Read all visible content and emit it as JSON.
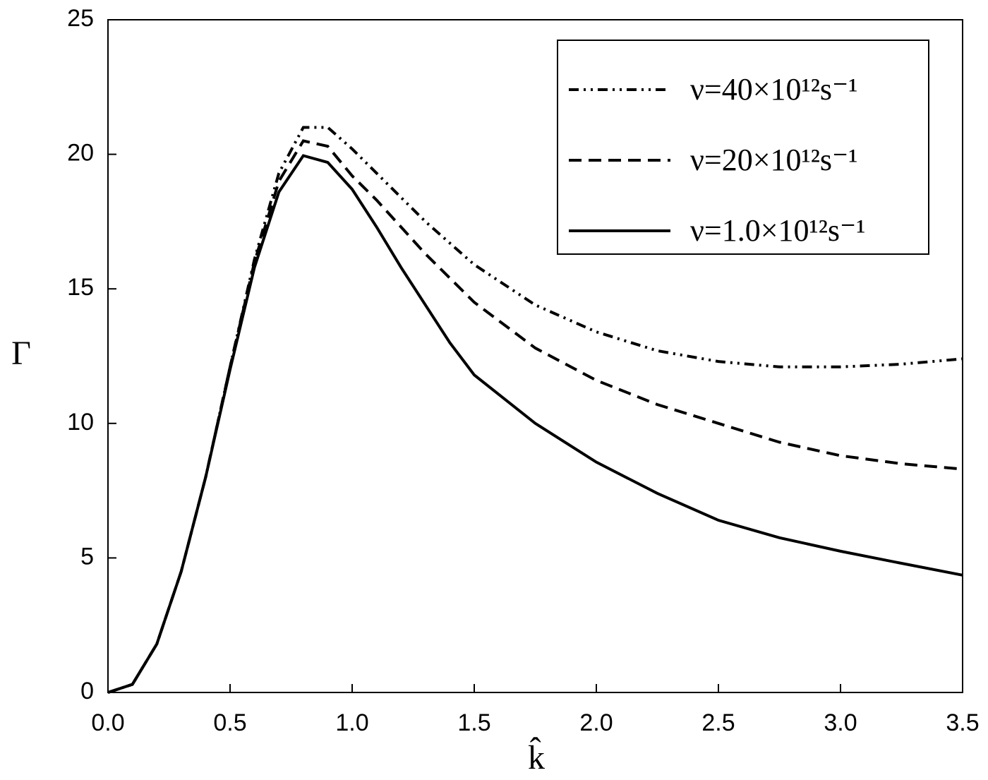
{
  "chart_data": {
    "type": "line",
    "xlabel": "k̂",
    "ylabel": "Γ",
    "x": [
      0,
      0.1,
      0.2,
      0.3,
      0.4,
      0.5,
      0.6,
      0.7,
      0.8,
      0.9,
      1.0,
      1.1,
      1.2,
      1.3,
      1.4,
      1.5,
      1.75,
      2.0,
      2.25,
      2.5,
      2.75,
      3.0,
      3.25,
      3.5
    ],
    "series": [
      {
        "name": "ν=40×10¹²s⁻¹",
        "color": "#000000",
        "dash": "dash-dot-dot",
        "values": [
          0,
          0.3,
          1.8,
          4.5,
          8.0,
          12.1,
          16.1,
          19.3,
          21.0,
          21.0,
          20.2,
          19.3,
          18.4,
          17.5,
          16.7,
          15.9,
          14.4,
          13.4,
          12.7,
          12.3,
          12.1,
          12.1,
          12.2,
          12.4
        ]
      },
      {
        "name": "ν=20×10¹²s⁻¹",
        "color": "#000000",
        "dash": "dashed",
        "values": [
          0,
          0.3,
          1.8,
          4.5,
          8.0,
          12.1,
          16.0,
          19.0,
          20.5,
          20.3,
          19.2,
          18.3,
          17.3,
          16.3,
          15.4,
          14.5,
          12.8,
          11.6,
          10.7,
          10.0,
          9.3,
          8.8,
          8.5,
          8.3
        ]
      },
      {
        "name": "ν=1.0×10¹²s⁻¹",
        "color": "#000000",
        "dash": "solid",
        "values": [
          0,
          0.3,
          1.8,
          4.5,
          8.0,
          12.0,
          15.8,
          18.6,
          19.95,
          19.7,
          18.7,
          17.3,
          15.8,
          14.4,
          13.0,
          11.8,
          10.0,
          8.56,
          7.4,
          6.4,
          5.75,
          5.25,
          4.8,
          4.36
        ]
      }
    ],
    "xlim": [
      0,
      3.5
    ],
    "xticks": [
      {
        "value": 0,
        "label": "0.0"
      },
      0.5,
      {
        "value": 1,
        "label": "1.0"
      },
      1.5,
      {
        "value": 2,
        "label": "2.0"
      },
      2.5,
      {
        "value": 3,
        "label": "3.0"
      },
      3.5
    ],
    "ylim": [
      0,
      25
    ],
    "yticks": [
      0,
      5,
      10,
      15,
      20,
      25
    ],
    "legend": "top-right",
    "grid": false
  }
}
